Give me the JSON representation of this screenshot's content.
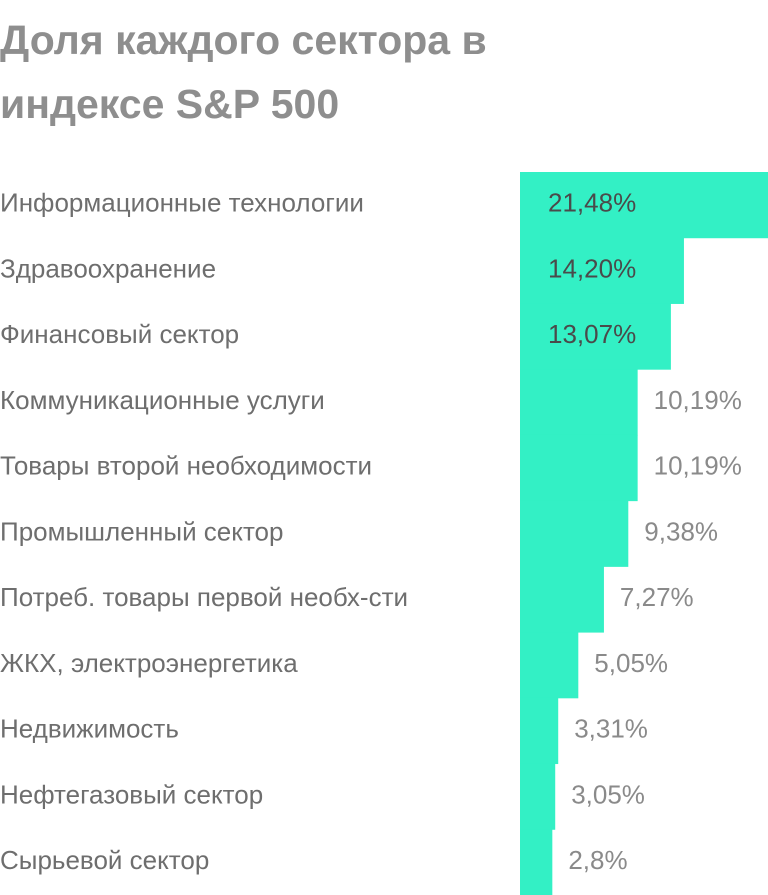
{
  "chart_data": {
    "type": "bar",
    "orientation": "horizontal",
    "title": "Доля каждого сектора в индексе S&P 500",
    "categories": [
      "Информационные технологии",
      "Здравоохранение",
      "Финансовый сектор",
      "Коммуникационные услуги",
      "Товары второй необходимости",
      "Промышленный сектор",
      "Потреб. товары первой необх-сти",
      "ЖКХ, электроэнергетика",
      "Недвижимость",
      "Нефтегазовый сектор",
      "Сырьевой сектор"
    ],
    "values": [
      21.48,
      14.2,
      13.07,
      10.19,
      10.19,
      9.38,
      7.27,
      5.05,
      3.31,
      3.05,
      2.8
    ],
    "value_labels": [
      "21,48%",
      "14,20%",
      "13,07%",
      "10,19%",
      "10,19%",
      "9,38%",
      "7,27%",
      "5,05%",
      "3,31%",
      "3,05%",
      "2,8%"
    ],
    "color": "#33f0c5"
  }
}
